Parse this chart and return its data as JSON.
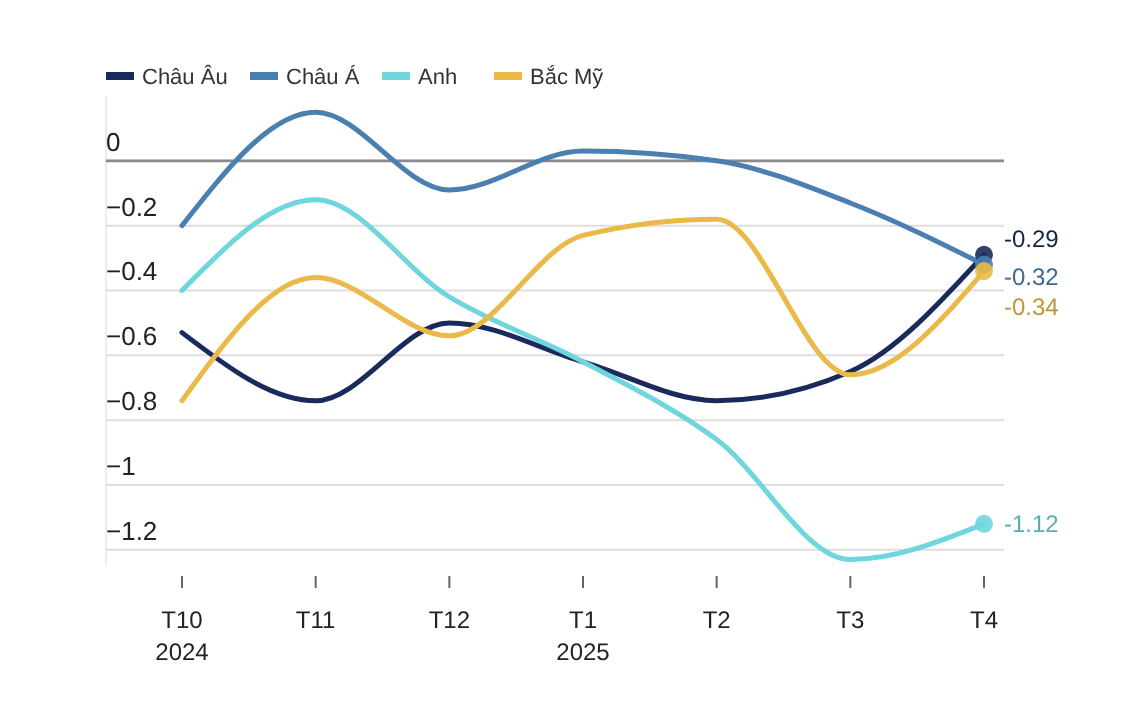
{
  "chart_data": {
    "type": "line",
    "categories": [
      "T10\n2024",
      "T11",
      "T12",
      "T1\n2025",
      "T2",
      "T3",
      "T4"
    ],
    "series": [
      {
        "name": "Châu Âu",
        "color": "#1b2a5c",
        "values": [
          -0.53,
          -0.74,
          -0.5,
          -0.62,
          -0.74,
          -0.65,
          -0.29
        ],
        "value_labels": [
          null,
          null,
          null,
          null,
          null,
          null,
          "-0.29"
        ]
      },
      {
        "name": "Châu Á",
        "color": "#4a7fb2",
        "values": [
          -0.2,
          0.15,
          -0.09,
          0.03,
          0.0,
          -0.13,
          -0.32
        ],
        "value_labels": [
          null,
          null,
          null,
          null,
          null,
          null,
          "-0.32"
        ]
      },
      {
        "name": "Anh",
        "color": "#6fd6de",
        "values": [
          -0.4,
          -0.12,
          -0.42,
          -0.62,
          -0.86,
          -1.23,
          -1.12
        ],
        "value_labels": [
          null,
          null,
          null,
          null,
          null,
          null,
          "-1.12"
        ]
      },
      {
        "name": "Bắc Mỹ",
        "color": "#eab948",
        "values": [
          -0.74,
          -0.36,
          -0.54,
          -0.23,
          -0.18,
          -0.66,
          -0.34
        ],
        "value_labels": [
          null,
          null,
          null,
          null,
          null,
          null,
          "-0.34"
        ]
      }
    ],
    "ylim": [
      -1.25,
      0.2
    ],
    "yticks": [
      0,
      {
        "value": -0.2,
        "label": "−0.2"
      },
      {
        "value": -0.4,
        "label": "−0.4"
      },
      {
        "value": -0.6,
        "label": "−0.6"
      },
      {
        "value": -0.8,
        "label": "−0.8"
      },
      {
        "value": -1,
        "label": "−1"
      },
      {
        "value": -1.2,
        "label": "−1.2"
      }
    ],
    "grid": "y",
    "legend": "top left",
    "ref_lines": [
      {
        "axis": "y",
        "value": 0,
        "color": "#8a8a8a"
      }
    ]
  }
}
